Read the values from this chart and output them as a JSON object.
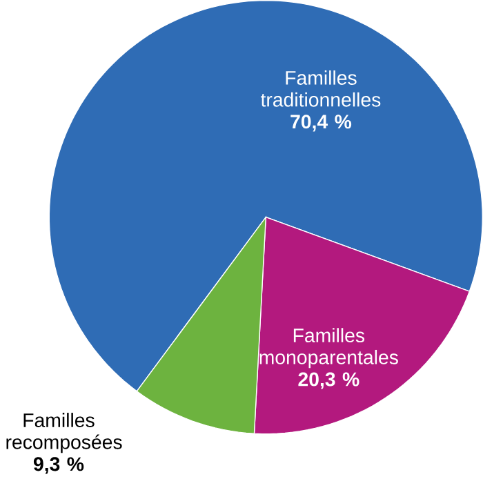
{
  "chart_data": {
    "type": "pie",
    "categories": [
      "Familles traditionnelles",
      "Familles monoparentales",
      "Familles recomposées"
    ],
    "values": [
      70.4,
      20.3,
      9.3
    ],
    "value_labels": [
      "70,4 %",
      "20,3 %",
      "9,3 %"
    ],
    "colors": [
      "#2f6cb5",
      "#b3197e",
      "#6db33f"
    ]
  }
}
